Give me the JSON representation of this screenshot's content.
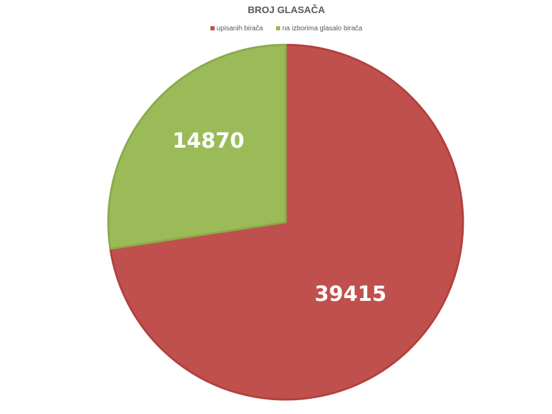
{
  "chart_data": {
    "type": "pie",
    "title": "BROJ GLASAČA",
    "legend_position": "top",
    "slices": [
      {
        "name": "upisanih birača",
        "value": 39415,
        "color": "#C0504D",
        "label": "39415"
      },
      {
        "name": "na izborima glasalo birača",
        "value": 14870,
        "color": "#9BBB59",
        "label": "14870"
      }
    ],
    "start_angle": "12 o'clock",
    "direction": "clockwise"
  }
}
